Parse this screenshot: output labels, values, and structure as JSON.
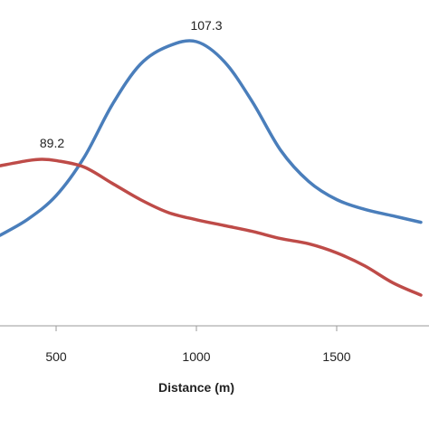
{
  "chart_data": {
    "type": "line",
    "xlabel": "Distance  (m)",
    "ylabel": "",
    "title": "",
    "x_ticks": [
      500,
      1000,
      1500
    ],
    "xlim": [
      300,
      1800
    ],
    "ylim": [
      50,
      115
    ],
    "grid": false,
    "series": [
      {
        "color": "#4a7ebb",
        "points": [
          [
            300,
            77.5
          ],
          [
            400,
            80.0
          ],
          [
            500,
            83.6
          ],
          [
            600,
            89.5
          ],
          [
            700,
            97.6
          ],
          [
            800,
            103.8
          ],
          [
            900,
            106.6
          ],
          [
            1000,
            107.3
          ],
          [
            1100,
            104.2
          ],
          [
            1200,
            98.0
          ],
          [
            1300,
            90.6
          ],
          [
            1400,
            85.8
          ],
          [
            1500,
            83.0
          ],
          [
            1600,
            81.5
          ],
          [
            1700,
            80.5
          ],
          [
            1800,
            79.5
          ]
        ]
      },
      {
        "color": "#be4b48",
        "points": [
          [
            300,
            88.2
          ],
          [
            400,
            89.0
          ],
          [
            450,
            89.2
          ],
          [
            500,
            89.0
          ],
          [
            600,
            88.0
          ],
          [
            700,
            85.5
          ],
          [
            800,
            83.0
          ],
          [
            900,
            81.0
          ],
          [
            1000,
            79.9
          ],
          [
            1100,
            79.0
          ],
          [
            1200,
            78.1
          ],
          [
            1300,
            77.0
          ],
          [
            1400,
            76.2
          ],
          [
            1500,
            74.8
          ],
          [
            1600,
            72.8
          ],
          [
            1700,
            70.2
          ],
          [
            1800,
            68.3
          ]
        ]
      }
    ],
    "data_labels": [
      {
        "series": 0,
        "x": 1000,
        "y": 107.3,
        "text": "107.3"
      },
      {
        "series": 1,
        "x": 450,
        "y": 89.2,
        "text": "89.2"
      }
    ]
  }
}
